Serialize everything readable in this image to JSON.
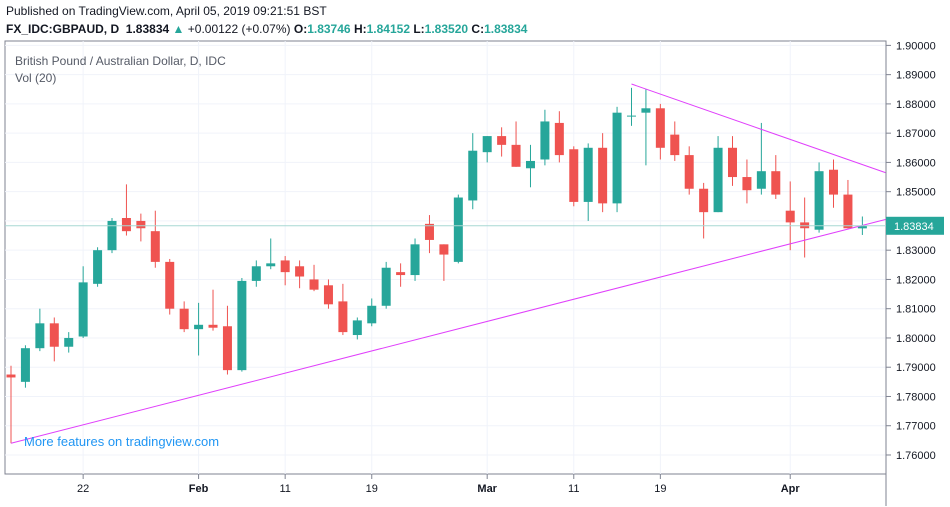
{
  "header": {
    "published": "Published on TradingView.com, April 05, 2019 09:21:51 BST",
    "symbol": "FX_IDC:GBPAUD, D",
    "last": "1.83834",
    "up_arrow": "▲",
    "change": "+0.00122 (+0.07%)",
    "o_label": "O:",
    "o_value": "1.83746",
    "h_label": "H:",
    "h_value": "1.84152",
    "l_label": "L:",
    "l_value": "1.83520",
    "c_label": "C:",
    "c_value": "1.83834"
  },
  "chart_data": {
    "type": "candlestick",
    "title": "British Pound / Australian Dollar, D, IDC",
    "subtitle": "Vol (20)",
    "watermark": "More features on tradingview.com",
    "last_price_label": "1.83834",
    "last_price": 1.83834,
    "ylim": [
      1.7535,
      1.9015
    ],
    "yticks": [
      "1.76000",
      "1.77000",
      "1.78000",
      "1.79000",
      "1.80000",
      "1.81000",
      "1.82000",
      "1.83000",
      "1.84000",
      "1.85000",
      "1.86000",
      "1.87000",
      "1.88000",
      "1.89000",
      "1.90000"
    ],
    "ytick_values": [
      1.76,
      1.77,
      1.78,
      1.79,
      1.8,
      1.81,
      1.82,
      1.83,
      1.84,
      1.85,
      1.86,
      1.87,
      1.88,
      1.89,
      1.9
    ],
    "xticks": [
      {
        "label": "22",
        "index": 5,
        "bold": false
      },
      {
        "label": "Feb",
        "index": 13,
        "bold": true
      },
      {
        "label": "11",
        "index": 19,
        "bold": false
      },
      {
        "label": "19",
        "index": 25,
        "bold": false
      },
      {
        "label": "Mar",
        "index": 33,
        "bold": true
      },
      {
        "label": "11",
        "index": 39,
        "bold": false
      },
      {
        "label": "19",
        "index": 45,
        "bold": false
      },
      {
        "label": "Apr",
        "index": 54,
        "bold": true
      }
    ],
    "candles": [
      {
        "o": 1.7875,
        "h": 1.7905,
        "l": 1.764,
        "c": 1.7865
      },
      {
        "o": 1.785,
        "h": 1.7975,
        "l": 1.783,
        "c": 1.7965
      },
      {
        "o": 1.7965,
        "h": 1.81,
        "l": 1.7955,
        "c": 1.805
      },
      {
        "o": 1.805,
        "h": 1.807,
        "l": 1.792,
        "c": 1.797
      },
      {
        "o": 1.797,
        "h": 1.802,
        "l": 1.795,
        "c": 1.8
      },
      {
        "o": 1.8005,
        "h": 1.8245,
        "l": 1.8,
        "c": 1.819
      },
      {
        "o": 1.8185,
        "h": 1.831,
        "l": 1.8175,
        "c": 1.83
      },
      {
        "o": 1.83,
        "h": 1.841,
        "l": 1.829,
        "c": 1.84
      },
      {
        "o": 1.841,
        "h": 1.8525,
        "l": 1.835,
        "c": 1.8365
      },
      {
        "o": 1.84,
        "h": 1.8425,
        "l": 1.833,
        "c": 1.8375
      },
      {
        "o": 1.8365,
        "h": 1.8435,
        "l": 1.824,
        "c": 1.826
      },
      {
        "o": 1.826,
        "h": 1.827,
        "l": 1.808,
        "c": 1.81
      },
      {
        "o": 1.81,
        "h": 1.8125,
        "l": 1.802,
        "c": 1.803
      },
      {
        "o": 1.803,
        "h": 1.812,
        "l": 1.794,
        "c": 1.8045
      },
      {
        "o": 1.8045,
        "h": 1.8165,
        "l": 1.8025,
        "c": 1.8035
      },
      {
        "o": 1.804,
        "h": 1.811,
        "l": 1.7875,
        "c": 1.789
      },
      {
        "o": 1.789,
        "h": 1.8205,
        "l": 1.7885,
        "c": 1.8195
      },
      {
        "o": 1.8195,
        "h": 1.8265,
        "l": 1.8175,
        "c": 1.8245
      },
      {
        "o": 1.8245,
        "h": 1.834,
        "l": 1.8235,
        "c": 1.8255
      },
      {
        "o": 1.8265,
        "h": 1.828,
        "l": 1.818,
        "c": 1.8225
      },
      {
        "o": 1.8245,
        "h": 1.8265,
        "l": 1.817,
        "c": 1.821
      },
      {
        "o": 1.82,
        "h": 1.825,
        "l": 1.816,
        "c": 1.8165
      },
      {
        "o": 1.818,
        "h": 1.82,
        "l": 1.81,
        "c": 1.8115
      },
      {
        "o": 1.8125,
        "h": 1.8185,
        "l": 1.801,
        "c": 1.802
      },
      {
        "o": 1.801,
        "h": 1.807,
        "l": 1.7995,
        "c": 1.806
      },
      {
        "o": 1.805,
        "h": 1.8135,
        "l": 1.804,
        "c": 1.811
      },
      {
        "o": 1.811,
        "h": 1.826,
        "l": 1.81,
        "c": 1.824
      },
      {
        "o": 1.8225,
        "h": 1.8255,
        "l": 1.8175,
        "c": 1.8215
      },
      {
        "o": 1.8215,
        "h": 1.834,
        "l": 1.8195,
        "c": 1.832
      },
      {
        "o": 1.839,
        "h": 1.842,
        "l": 1.829,
        "c": 1.8335
      },
      {
        "o": 1.832,
        "h": 1.832,
        "l": 1.8195,
        "c": 1.8285
      },
      {
        "o": 1.826,
        "h": 1.849,
        "l": 1.8255,
        "c": 1.848
      },
      {
        "o": 1.847,
        "h": 1.87,
        "l": 1.844,
        "c": 1.864
      },
      {
        "o": 1.8635,
        "h": 1.869,
        "l": 1.86,
        "c": 1.869
      },
      {
        "o": 1.869,
        "h": 1.872,
        "l": 1.862,
        "c": 1.866
      },
      {
        "o": 1.866,
        "h": 1.874,
        "l": 1.8585,
        "c": 1.8585
      },
      {
        "o": 1.858,
        "h": 1.866,
        "l": 1.8515,
        "c": 1.8605
      },
      {
        "o": 1.861,
        "h": 1.878,
        "l": 1.859,
        "c": 1.874
      },
      {
        "o": 1.8735,
        "h": 1.8775,
        "l": 1.86,
        "c": 1.8625
      },
      {
        "o": 1.8645,
        "h": 1.8655,
        "l": 1.845,
        "c": 1.8465
      },
      {
        "o": 1.8465,
        "h": 1.8665,
        "l": 1.84,
        "c": 1.865
      },
      {
        "o": 1.865,
        "h": 1.87,
        "l": 1.843,
        "c": 1.846
      },
      {
        "o": 1.846,
        "h": 1.879,
        "l": 1.843,
        "c": 1.877
      },
      {
        "o": 1.876,
        "h": 1.8855,
        "l": 1.8725,
        "c": 1.876
      },
      {
        "o": 1.877,
        "h": 1.885,
        "l": 1.859,
        "c": 1.8785
      },
      {
        "o": 1.8785,
        "h": 1.88,
        "l": 1.861,
        "c": 1.865
      },
      {
        "o": 1.8695,
        "h": 1.874,
        "l": 1.8605,
        "c": 1.8625
      },
      {
        "o": 1.8625,
        "h": 1.8655,
        "l": 1.849,
        "c": 1.851
      },
      {
        "o": 1.851,
        "h": 1.853,
        "l": 1.834,
        "c": 1.843
      },
      {
        "o": 1.843,
        "h": 1.869,
        "l": 1.843,
        "c": 1.865
      },
      {
        "o": 1.865,
        "h": 1.869,
        "l": 1.852,
        "c": 1.855
      },
      {
        "o": 1.855,
        "h": 1.861,
        "l": 1.846,
        "c": 1.8505
      },
      {
        "o": 1.851,
        "h": 1.8735,
        "l": 1.849,
        "c": 1.857
      },
      {
        "o": 1.857,
        "h": 1.8625,
        "l": 1.8475,
        "c": 1.849
      },
      {
        "o": 1.8435,
        "h": 1.8535,
        "l": 1.83,
        "c": 1.8395
      },
      {
        "o": 1.8395,
        "h": 1.848,
        "l": 1.8275,
        "c": 1.8375
      },
      {
        "o": 1.837,
        "h": 1.86,
        "l": 1.836,
        "c": 1.857
      },
      {
        "o": 1.8575,
        "h": 1.861,
        "l": 1.8445,
        "c": 1.849
      },
      {
        "o": 1.849,
        "h": 1.854,
        "l": 1.8375,
        "c": 1.8375
      },
      {
        "o": 1.83746,
        "h": 1.84152,
        "l": 1.8352,
        "c": 1.83834
      }
    ],
    "trendlines": [
      {
        "from_index": 0,
        "from_price": 1.764,
        "to_index": 60.6,
        "to_price": 1.8405
      },
      {
        "from_index": 43,
        "from_price": 1.8868,
        "to_index": 60.6,
        "to_price": 1.8565
      }
    ],
    "colors": {
      "up": "#26a69a",
      "down": "#ef5350",
      "trend": "#e040fb",
      "grid": "#f0f3fa",
      "axis": "#7f8391",
      "last_price": "#26a69a"
    }
  }
}
